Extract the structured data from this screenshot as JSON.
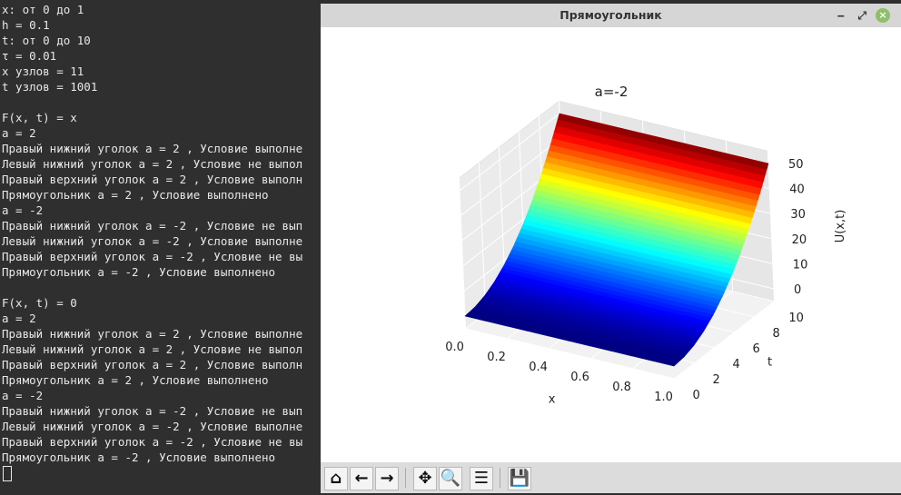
{
  "terminal": {
    "lines": [
      "x: от 0 до 1",
      "h = 0.1",
      "t: от 0 до 10",
      "τ = 0.01",
      "x узлов = 11",
      "t узлов = 1001",
      "",
      "F(x, t) = x",
      "a = 2",
      "Правый нижний уголок a = 2 , Условие выполне",
      "Левый нижний уголок a = 2 , Условие не выпол",
      "Правый верхний уголок a = 2 , Условие выполн",
      "Прямоугольник a = 2 , Условие выполнено",
      "a = -2",
      "Правый нижний уголок a = -2 , Условие не вып",
      "Левый нижний уголок a = -2 , Условие выполне",
      "Правый верхний уголок a = -2 , Условие не вы",
      "Прямоугольник a = -2 , Условие выполнено",
      "",
      "F(x, t) = 0",
      "a = 2",
      "Правый нижний уголок a = 2 , Условие выполне",
      "Левый нижний уголок a = 2 , Условие не выпол",
      "Правый верхний уголок a = 2 , Условие выполн",
      "Прямоугольник a = 2 , Условие выполнено",
      "a = -2",
      "Правый нижний уголок a = -2 , Условие не вып",
      "Левый нижний уголок a = -2 , Условие выполне",
      "Правый верхний уголок a = -2 , Условие не вы",
      "Прямоугольник a = -2 , Условие выполнено"
    ]
  },
  "window": {
    "title": "Прямоугольник",
    "minimize": "‒",
    "maximize": "⤢",
    "close": "×"
  },
  "toolbar": [
    {
      "name": "home",
      "icon": "home-icon",
      "glyph": "⌂"
    },
    {
      "name": "back",
      "icon": "arrow-left-icon",
      "glyph": "←"
    },
    {
      "name": "forward",
      "icon": "arrow-right-icon",
      "glyph": "→"
    },
    {
      "name": "pan",
      "icon": "move-icon",
      "glyph": "✥"
    },
    {
      "name": "zoom",
      "icon": "magnifier-icon",
      "glyph": "🔍"
    },
    {
      "name": "configure",
      "icon": "sliders-icon",
      "glyph": "☰"
    },
    {
      "name": "save",
      "icon": "floppy-icon",
      "glyph": "💾"
    }
  ],
  "chart_data": {
    "type": "surface3d",
    "title": "a=-2",
    "xlabel": "x",
    "ylabel": "t",
    "zlabel": "U(x,t)",
    "xticks": [
      "0.0",
      "0.2",
      "0.4",
      "0.6",
      "0.8",
      "1.0"
    ],
    "yticks": [
      "0",
      "2",
      "4",
      "6",
      "8",
      "10"
    ],
    "zticks": [
      "0",
      "10",
      "20",
      "30",
      "40",
      "50"
    ],
    "xlim": [
      0,
      1
    ],
    "ylim": [
      0,
      10
    ],
    "zlim": [
      0,
      50
    ],
    "colormap": "jet",
    "x": [
      0,
      0.1,
      0.2,
      0.3,
      0.4,
      0.5,
      0.6,
      0.7,
      0.8,
      0.9,
      1.0
    ],
    "t": [
      0,
      1,
      2,
      3,
      4,
      5,
      6,
      7,
      8,
      9,
      10
    ],
    "U_vs_t": [
      0,
      0.5,
      2,
      4.5,
      8,
      12.5,
      18,
      24.5,
      32,
      40.5,
      50
    ]
  }
}
